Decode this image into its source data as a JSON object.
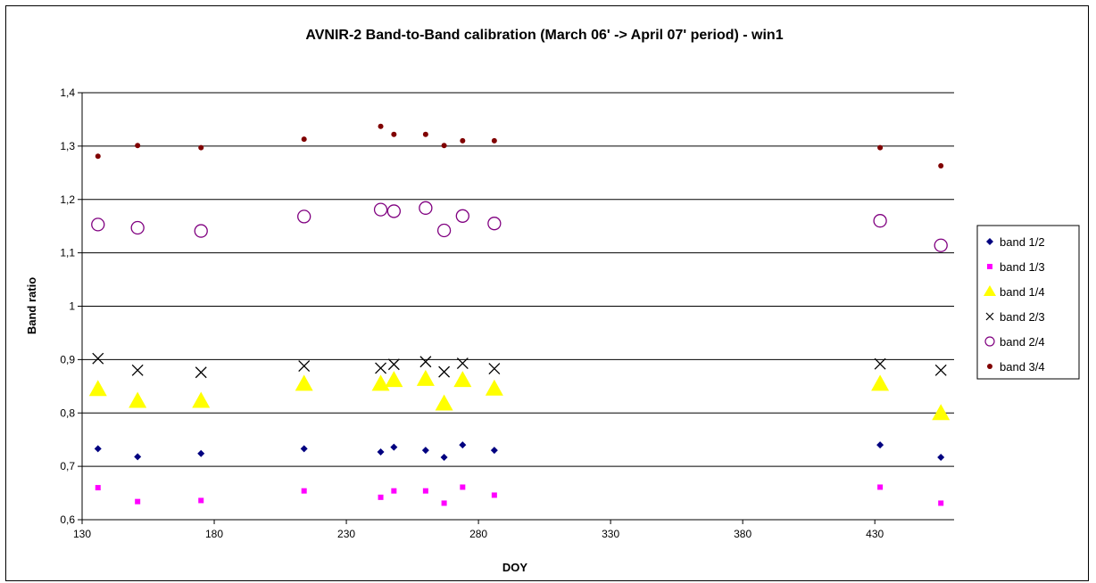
{
  "chart_data": {
    "type": "scatter",
    "title": "AVNIR-2 Band-to-Band calibration (March 06' -> April 07'  period) - win1",
    "xlabel": "DOY",
    "ylabel": "Band ratio",
    "xlim": [
      130,
      460
    ],
    "ylim": [
      0.6,
      1.4
    ],
    "xticks": [
      130,
      180,
      230,
      280,
      330,
      380,
      430
    ],
    "xtick_labels": [
      "130",
      "180",
      "230",
      "280",
      "330",
      "380",
      "430"
    ],
    "yticks": [
      0.6,
      0.7,
      0.8,
      0.9,
      1.0,
      1.1,
      1.2,
      1.3,
      1.4
    ],
    "ytick_labels": [
      "0,6",
      "0,7",
      "0,8",
      "0,9",
      "1",
      "1,1",
      "1,2",
      "1,3",
      "1,4"
    ],
    "grid": "horizontal",
    "legend_position": "right",
    "x": [
      136,
      151,
      175,
      214,
      243,
      248,
      260,
      267,
      274,
      286,
      432,
      455
    ],
    "series": [
      {
        "name": "band 1/2",
        "marker": "diamond",
        "color": "#000080",
        "values": [
          0.733,
          0.718,
          0.724,
          0.733,
          0.727,
          0.736,
          0.73,
          0.717,
          0.74,
          0.73,
          0.74,
          0.717
        ]
      },
      {
        "name": "band 1/3",
        "marker": "square",
        "color": "#ff00ff",
        "values": [
          0.66,
          0.634,
          0.636,
          0.654,
          0.642,
          0.654,
          0.654,
          0.631,
          0.661,
          0.646,
          0.661,
          0.631
        ]
      },
      {
        "name": "band 1/4",
        "marker": "triangle",
        "color": "#ffff00",
        "values": [
          0.845,
          0.823,
          0.823,
          0.855,
          0.855,
          0.862,
          0.864,
          0.818,
          0.862,
          0.846,
          0.855,
          0.8
        ]
      },
      {
        "name": "band 2/3",
        "marker": "x",
        "color": "#000000",
        "values": [
          0.902,
          0.88,
          0.876,
          0.888,
          0.884,
          0.891,
          0.896,
          0.877,
          0.893,
          0.883,
          0.892,
          0.88
        ]
      },
      {
        "name": "band 2/4",
        "marker": "circle",
        "color": "#800080",
        "values": [
          1.153,
          1.147,
          1.141,
          1.168,
          1.181,
          1.178,
          1.184,
          1.142,
          1.169,
          1.155,
          1.16,
          1.114
        ]
      },
      {
        "name": "band 3/4",
        "marker": "dot",
        "color": "#800000",
        "values": [
          1.281,
          1.301,
          1.297,
          1.313,
          1.337,
          1.322,
          1.322,
          1.301,
          1.31,
          1.31,
          1.297,
          1.263
        ]
      }
    ]
  }
}
